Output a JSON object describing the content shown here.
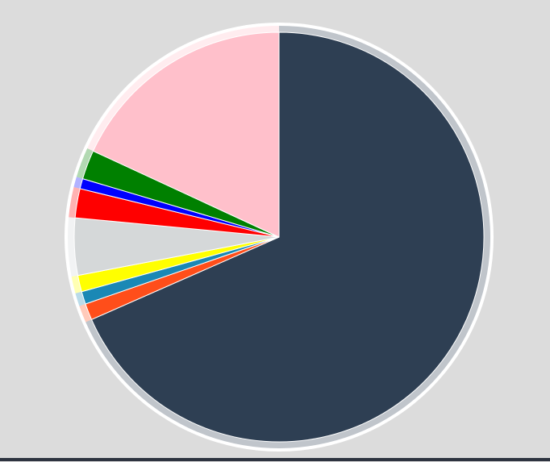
{
  "chart_data": {
    "type": "pie",
    "title": "",
    "start_angle_deg": 0,
    "direction": "clockwise",
    "legend": "none",
    "slices": [
      {
        "value": 68.4,
        "color": "#2e3f53"
      },
      {
        "value": 1.3,
        "color": "#ff4e1a"
      },
      {
        "value": 1.0,
        "color": "#1a88b5"
      },
      {
        "value": 1.3,
        "color": "#ffff00"
      },
      {
        "value": 4.5,
        "color": "#d5d8d9"
      },
      {
        "value": 2.3,
        "color": "#ff0000"
      },
      {
        "value": 0.8,
        "color": "#0000ff"
      },
      {
        "value": 2.3,
        "color": "#008000"
      },
      {
        "value": 18.1,
        "color": "#ffc0cb"
      }
    ]
  }
}
